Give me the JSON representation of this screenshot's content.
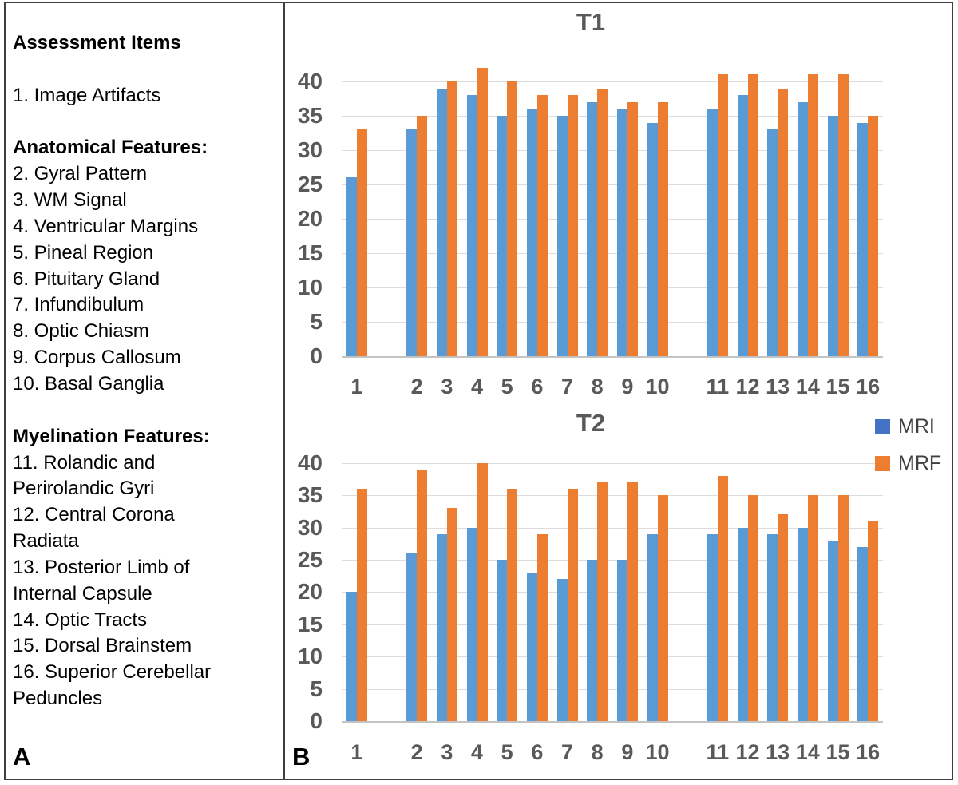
{
  "figure": {
    "panel_label_a": "A",
    "panel_label_b": "B"
  },
  "left_panel": {
    "heading": "Assessment Items",
    "lines": [
      {
        "text": "Assessment Items",
        "bold": true
      },
      {
        "text": ""
      },
      {
        "text": "1. Image Artifacts",
        "bold": false
      },
      {
        "text": ""
      },
      {
        "text": "Anatomical Features:",
        "bold": true
      },
      {
        "text": "2. Gyral Pattern",
        "bold": false
      },
      {
        "text": "3. WM Signal",
        "bold": false
      },
      {
        "text": "4. Ventricular Margins",
        "bold": false
      },
      {
        "text": "5. Pineal Region",
        "bold": false
      },
      {
        "text": "6. Pituitary Gland",
        "bold": false
      },
      {
        "text": "7. Infundibulum",
        "bold": false
      },
      {
        "text": "8. Optic Chiasm",
        "bold": false
      },
      {
        "text": "9. Corpus Callosum",
        "bold": false
      },
      {
        "text": "10. Basal Ganglia",
        "bold": false
      },
      {
        "text": ""
      },
      {
        "text": "Myelination Features:",
        "bold": true
      },
      {
        "text": "11. Rolandic and",
        "bold": false
      },
      {
        "text": "Perirolandic Gyri",
        "bold": false
      },
      {
        "text": "12. Central Corona",
        "bold": false
      },
      {
        "text": "Radiata",
        "bold": false
      },
      {
        "text": "13. Posterior Limb of",
        "bold": false
      },
      {
        "text": "Internal Capsule",
        "bold": false
      },
      {
        "text": "14. Optic Tracts",
        "bold": false
      },
      {
        "text": "15. Dorsal Brainstem",
        "bold": false
      },
      {
        "text": "16. Superior Cerebellar",
        "bold": false
      },
      {
        "text": "Peduncles",
        "bold": false
      }
    ]
  },
  "legend": {
    "items": [
      {
        "label": "MRI",
        "color": "#4472C4"
      },
      {
        "label": "MRF",
        "color": "#ED7D31"
      }
    ],
    "position": "right-of-T2-top"
  },
  "chart_data": [
    {
      "type": "bar",
      "title": "T1",
      "categories": [
        "1",
        "2",
        "3",
        "4",
        "5",
        "6",
        "7",
        "8",
        "9",
        "10",
        "11",
        "12",
        "13",
        "14",
        "15",
        "16"
      ],
      "group_breaks": [
        1,
        10
      ],
      "series": [
        {
          "name": "MRI",
          "color": "#5B9BD5",
          "values": [
            26,
            33,
            39,
            38,
            35,
            36,
            35,
            37,
            36,
            34,
            36,
            38,
            33,
            37,
            35,
            34
          ]
        },
        {
          "name": "MRF",
          "color": "#ED7D31",
          "values": [
            33,
            35,
            40,
            42,
            40,
            38,
            38,
            39,
            37,
            37,
            41,
            41,
            39,
            41,
            41,
            35
          ]
        }
      ],
      "xlabel": "",
      "ylabel": "",
      "ylim": [
        0,
        42.5
      ],
      "yticks": [
        0,
        5,
        10,
        15,
        20,
        25,
        30,
        35,
        40
      ],
      "grid": true
    },
    {
      "type": "bar",
      "title": "T2",
      "categories": [
        "1",
        "2",
        "3",
        "4",
        "5",
        "6",
        "7",
        "8",
        "9",
        "10",
        "11",
        "12",
        "13",
        "14",
        "15",
        "16"
      ],
      "group_breaks": [
        1,
        10
      ],
      "series": [
        {
          "name": "MRI",
          "color": "#5B9BD5",
          "values": [
            20,
            26,
            29,
            30,
            25,
            23,
            22,
            25,
            25,
            29,
            29,
            30,
            29,
            30,
            28,
            27
          ]
        },
        {
          "name": "MRF",
          "color": "#ED7D31",
          "values": [
            36,
            39,
            33,
            40,
            36,
            29,
            36,
            37,
            37,
            35,
            38,
            35,
            32,
            35,
            35,
            31
          ]
        }
      ],
      "xlabel": "",
      "ylabel": "",
      "ylim": [
        0,
        42.5
      ],
      "yticks": [
        0,
        5,
        10,
        15,
        20,
        25,
        30,
        35,
        40
      ],
      "grid": true
    }
  ]
}
